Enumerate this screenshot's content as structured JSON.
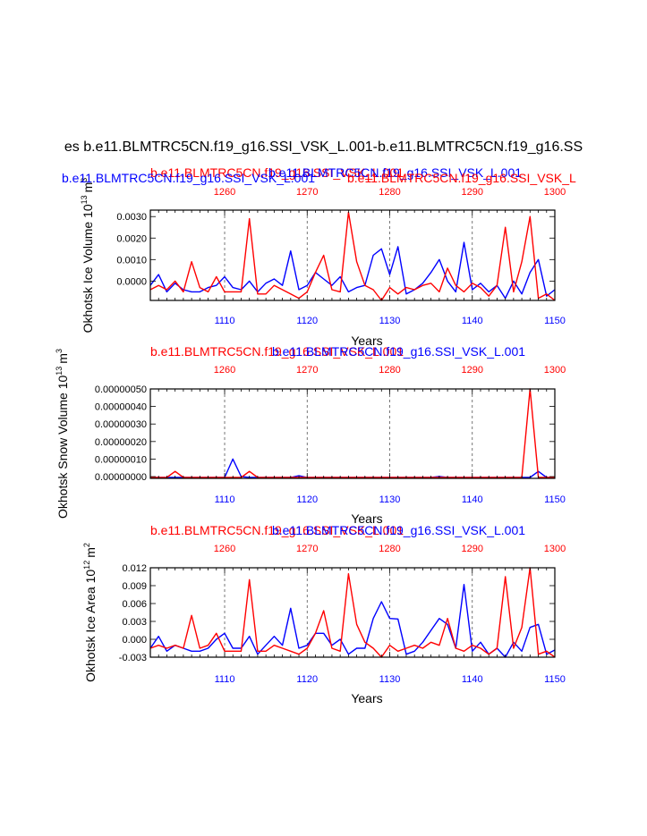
{
  "title": "es b.e11.BLMTRC5CN.f19_g16.SSI_VSK_L.001-b.e11.BLMTRC5CN.f19_g16.SS",
  "colors": {
    "run_a": "#0000ff",
    "run_b": "#ff0000",
    "axis": "#000000",
    "grid": "#555555"
  },
  "chart_data": [
    {
      "type": "line",
      "name": "ice-volume",
      "series_label_a": "b.e11.BLMTRC5CN.f19_g16.SSI_VSK_L.001",
      "series_label_b": "b.e11.BLMTRC5CN.f19_g16.SSI_VSK_L.001",
      "series_label_b_right": "b.e11.BLMTRC5CN.f19_g16.SSI_VSK_L",
      "ylabel_main": "Okhotsk Ice Volume 10",
      "ylabel_exp": "13",
      "ylabel_unit": "m",
      "ylabel_unit_exp": "3",
      "xlabel": "Years",
      "xlim": [
        1101,
        1150
      ],
      "ylim": [
        -0.0009,
        0.0033
      ],
      "top_xlim": [
        1251,
        1300
      ],
      "xticks": [
        1110,
        1120,
        1130,
        1140,
        1150
      ],
      "xtick_labels": [
        "1110",
        "1120",
        "1130",
        "1140",
        "1150"
      ],
      "top_xticks": [
        1260,
        1270,
        1280,
        1290,
        1300
      ],
      "top_xtick_labels": [
        "1260",
        "1270",
        "1280",
        "1290",
        "1300"
      ],
      "yticks": [
        0.0,
        0.001,
        0.002,
        0.003
      ],
      "ytick_labels": [
        "0.0000",
        "0.0010",
        "0.0020",
        "0.0030"
      ],
      "grid_x": [
        1110,
        1120,
        1130,
        1140
      ],
      "x": [
        1101,
        1102,
        1103,
        1104,
        1105,
        1106,
        1107,
        1108,
        1109,
        1110,
        1111,
        1112,
        1113,
        1114,
        1115,
        1116,
        1117,
        1118,
        1119,
        1120,
        1121,
        1122,
        1123,
        1124,
        1125,
        1126,
        1127,
        1128,
        1129,
        1130,
        1131,
        1132,
        1133,
        1134,
        1135,
        1136,
        1137,
        1138,
        1139,
        1140,
        1141,
        1142,
        1143,
        1144,
        1145,
        1146,
        1147,
        1148,
        1149,
        1150
      ],
      "series": [
        {
          "name": "blue",
          "color": "#0000ff",
          "values": [
            -0.0002,
            0.0003,
            -0.0005,
            -0.0001,
            -0.0004,
            -0.0005,
            -0.0005,
            -0.0003,
            -0.0002,
            0.0002,
            -0.0003,
            -0.0004,
            0.0,
            -0.0005,
            -0.0001,
            0.0001,
            -0.0002,
            0.0014,
            -0.0004,
            -0.0002,
            0.0004,
            0.0001,
            -0.0002,
            0.0002,
            -0.0005,
            -0.0003,
            -0.0002,
            0.0012,
            0.0015,
            0.0003,
            0.0016,
            -0.0006,
            -0.0004,
            -0.0001,
            0.0004,
            0.001,
            0.0,
            -0.0005,
            0.0018,
            -0.0004,
            -0.0001,
            -0.0005,
            -0.0002,
            -0.0008,
            0.0,
            -0.0006,
            0.0004,
            0.001,
            -0.0007,
            -0.0004
          ]
        },
        {
          "name": "red",
          "color": "#ff0000",
          "values": [
            -0.0004,
            -0.0002,
            -0.0004,
            0.0,
            -0.0005,
            0.0009,
            -0.0003,
            -0.0005,
            0.0002,
            -0.0005,
            -0.0005,
            -0.0005,
            0.0029,
            -0.0006,
            -0.0006,
            -0.0002,
            -0.0004,
            -0.0006,
            -0.0008,
            -0.0005,
            0.0004,
            0.0012,
            -0.0004,
            -0.0005,
            0.0032,
            0.0009,
            -0.0002,
            -0.0004,
            -0.0009,
            -0.0003,
            -0.0006,
            -0.0003,
            -0.0004,
            -0.0002,
            -0.0001,
            -0.0005,
            0.0006,
            -0.0002,
            -0.0005,
            -0.0001,
            -0.0003,
            -0.0007,
            -0.0002,
            0.0025,
            -0.0005,
            0.0009,
            0.003,
            -0.0008,
            -0.0006,
            -0.0009
          ]
        }
      ]
    },
    {
      "type": "line",
      "name": "snow-volume",
      "series_label_a": "b.e11.BLMTRC5CN.f19_g16.SSI_VSK_L.001",
      "series_label_b": "b.e11.BLMTRC5CN.f19_g16.SSI_VSK_L.001",
      "ylabel_main": "Okhotsk Snow Volume 10",
      "ylabel_exp": "13",
      "ylabel_unit": "m",
      "ylabel_unit_exp": "3",
      "xlabel": "Years",
      "xlim": [
        1101,
        1150
      ],
      "ylim": [
        -1e-08,
        5e-07
      ],
      "top_xlim": [
        1251,
        1300
      ],
      "xticks": [
        1110,
        1120,
        1130,
        1140,
        1150
      ],
      "xtick_labels": [
        "1110",
        "1120",
        "1130",
        "1140",
        "1150"
      ],
      "top_xticks": [
        1260,
        1270,
        1280,
        1290,
        1300
      ],
      "top_xtick_labels": [
        "1260",
        "1270",
        "1280",
        "1290",
        "1300"
      ],
      "yticks": [
        0.0,
        1e-07,
        2e-07,
        3e-07,
        4e-07,
        5e-07
      ],
      "ytick_labels": [
        "0.00000000",
        "0.00000010",
        "0.00000020",
        "0.00000030",
        "0.00000040",
        "0.00000050"
      ],
      "grid_x": [
        1110,
        1120,
        1130,
        1140
      ],
      "x": [
        1101,
        1102,
        1103,
        1104,
        1105,
        1106,
        1107,
        1108,
        1109,
        1110,
        1111,
        1112,
        1113,
        1114,
        1115,
        1116,
        1117,
        1118,
        1119,
        1120,
        1121,
        1122,
        1123,
        1124,
        1125,
        1126,
        1127,
        1128,
        1129,
        1130,
        1131,
        1132,
        1133,
        1134,
        1135,
        1136,
        1137,
        1138,
        1139,
        1140,
        1141,
        1142,
        1143,
        1144,
        1145,
        1146,
        1147,
        1148,
        1149,
        1150
      ],
      "series": [
        {
          "name": "blue",
          "color": "#0000ff",
          "values": [
            -5e-09,
            -5e-09,
            -5e-09,
            -5e-09,
            -5e-09,
            -5e-09,
            -5e-09,
            -5e-09,
            -5e-09,
            -5e-09,
            1e-07,
            0.0,
            -5e-09,
            -5e-09,
            -5e-09,
            -5e-09,
            -5e-09,
            -5e-09,
            5e-09,
            -5e-09,
            -5e-09,
            -5e-09,
            -5e-09,
            -5e-09,
            -5e-09,
            -5e-09,
            -5e-09,
            -5e-09,
            -5e-09,
            -5e-09,
            -5e-09,
            -5e-09,
            -5e-09,
            -5e-09,
            -5e-09,
            0.0,
            -5e-09,
            -5e-09,
            -5e-09,
            -5e-09,
            -5e-09,
            -5e-09,
            -5e-09,
            -5e-09,
            -5e-09,
            -5e-09,
            -5e-09,
            3e-08,
            -5e-09,
            -5e-09
          ]
        },
        {
          "name": "red",
          "color": "#ff0000",
          "values": [
            -5e-09,
            -5e-09,
            -5e-09,
            3e-08,
            -5e-09,
            -5e-09,
            -5e-09,
            -5e-09,
            -5e-09,
            -5e-09,
            -5e-09,
            -5e-09,
            3e-08,
            -5e-09,
            -5e-09,
            -5e-09,
            -5e-09,
            -5e-09,
            -5e-09,
            -5e-09,
            -5e-09,
            -5e-09,
            -5e-09,
            -5e-09,
            -5e-09,
            -5e-09,
            -5e-09,
            -5e-09,
            -5e-09,
            -5e-09,
            -5e-09,
            -5e-09,
            -5e-09,
            -5e-09,
            -5e-09,
            -5e-09,
            -5e-09,
            -5e-09,
            -5e-09,
            -5e-09,
            -5e-09,
            -5e-09,
            -5e-09,
            -5e-09,
            -5e-09,
            -5e-09,
            5e-07,
            -5e-09,
            -5e-09,
            -5e-09
          ]
        }
      ]
    },
    {
      "type": "line",
      "name": "ice-area",
      "series_label_a": "b.e11.BLMTRC5CN.f19_g16.SSI_VSK_L.001",
      "series_label_b": "b.e11.BLMTRC5CN.f19_g16.SSI_VSK_L.001",
      "ylabel_main": "Okhotsk Ice Area 10",
      "ylabel_exp": "12",
      "ylabel_unit": "m",
      "ylabel_unit_exp": "2",
      "xlabel": "Years",
      "xlim": [
        1101,
        1150
      ],
      "ylim": [
        -0.003,
        0.012
      ],
      "top_xlim": [
        1251,
        1300
      ],
      "xticks": [
        1110,
        1120,
        1130,
        1140,
        1150
      ],
      "xtick_labels": [
        "1110",
        "1120",
        "1130",
        "1140",
        "1150"
      ],
      "top_xticks": [
        1260,
        1270,
        1280,
        1290,
        1300
      ],
      "top_xtick_labels": [
        "1260",
        "1270",
        "1280",
        "1290",
        "1300"
      ],
      "yticks": [
        -0.003,
        0.0,
        0.003,
        0.006,
        0.009,
        0.012
      ],
      "ytick_labels": [
        "-0.003",
        "0.000",
        "0.003",
        "0.006",
        "0.009",
        "0.012"
      ],
      "grid_x": [
        1110,
        1120,
        1130,
        1140
      ],
      "x": [
        1101,
        1102,
        1103,
        1104,
        1105,
        1106,
        1107,
        1108,
        1109,
        1110,
        1111,
        1112,
        1113,
        1114,
        1115,
        1116,
        1117,
        1118,
        1119,
        1120,
        1121,
        1122,
        1123,
        1124,
        1125,
        1126,
        1127,
        1128,
        1129,
        1130,
        1131,
        1132,
        1133,
        1134,
        1135,
        1136,
        1137,
        1138,
        1139,
        1140,
        1141,
        1142,
        1143,
        1144,
        1145,
        1146,
        1147,
        1148,
        1149,
        1150
      ],
      "series": [
        {
          "name": "blue",
          "color": "#0000ff",
          "values": [
            -0.0015,
            0.0005,
            -0.002,
            -0.001,
            -0.0015,
            -0.002,
            -0.002,
            -0.0015,
            0.0,
            0.001,
            -0.0015,
            -0.0015,
            0.0005,
            -0.0025,
            -0.001,
            0.0005,
            -0.001,
            0.0052,
            -0.0015,
            -0.001,
            0.001,
            0.001,
            -0.001,
            0.0,
            -0.0025,
            -0.0015,
            -0.0015,
            0.0035,
            0.0063,
            0.0035,
            0.0034,
            -0.0025,
            -0.002,
            -0.0005,
            0.0015,
            0.0035,
            0.0025,
            -0.0015,
            0.0092,
            -0.002,
            -0.0005,
            -0.0025,
            -0.0015,
            -0.003,
            -0.0005,
            -0.002,
            0.002,
            0.0025,
            -0.0025,
            -0.0018
          ]
        },
        {
          "name": "red",
          "color": "#ff0000",
          "values": [
            -0.0015,
            -0.001,
            -0.0015,
            -0.001,
            -0.0015,
            0.004,
            -0.0015,
            -0.001,
            0.001,
            -0.002,
            -0.002,
            -0.002,
            0.01,
            -0.002,
            -0.002,
            -0.001,
            -0.0015,
            -0.002,
            -0.0025,
            -0.0015,
            0.001,
            0.0048,
            -0.0015,
            -0.002,
            0.011,
            0.0025,
            -0.0005,
            -0.0015,
            -0.003,
            -0.001,
            -0.002,
            -0.0015,
            -0.001,
            -0.0015,
            -0.0005,
            -0.001,
            0.0035,
            -0.0015,
            -0.002,
            -0.001,
            -0.0015,
            -0.0025,
            -0.0015,
            0.0105,
            -0.0015,
            0.002,
            0.012,
            -0.0025,
            -0.002,
            -0.003
          ]
        }
      ]
    }
  ]
}
